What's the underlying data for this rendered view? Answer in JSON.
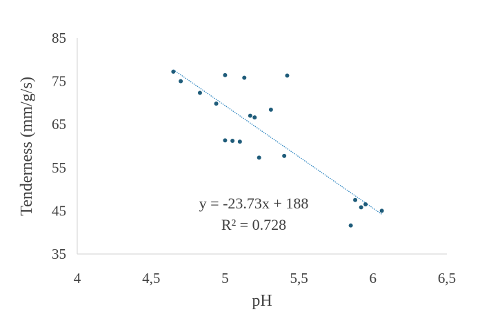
{
  "chart_data": {
    "type": "scatter",
    "title": "",
    "xlabel": "pH",
    "ylabel": "Tenderness (mm/g/s)",
    "xlim": [
      4,
      6.5
    ],
    "ylim": [
      35,
      85
    ],
    "x_ticks": [
      "4",
      "4,5",
      "5",
      "5,5",
      "6",
      "6,5"
    ],
    "y_ticks": [
      "35",
      "45",
      "55",
      "65",
      "75",
      "85"
    ],
    "grid": false,
    "legend": "none",
    "colors": {
      "points": "#1F5C7A",
      "trendline": "#2E86C1",
      "text": "#404040",
      "axis": "#D9D9D9"
    },
    "series": [
      {
        "points": [
          [
            4.65,
            77.2
          ],
          [
            4.7,
            75.0
          ],
          [
            4.83,
            72.3
          ],
          [
            4.94,
            69.8
          ],
          [
            5.0,
            76.4
          ],
          [
            5.13,
            75.8
          ],
          [
            5.42,
            76.3
          ],
          [
            5.17,
            67.0
          ],
          [
            5.2,
            66.6
          ],
          [
            5.31,
            68.4
          ],
          [
            5.0,
            61.3
          ],
          [
            5.05,
            61.2
          ],
          [
            5.1,
            61.0
          ],
          [
            5.23,
            57.3
          ],
          [
            5.4,
            57.7
          ],
          [
            5.88,
            47.5
          ],
          [
            5.92,
            45.8
          ],
          [
            5.95,
            46.5
          ],
          [
            6.06,
            45.0
          ],
          [
            5.85,
            41.6
          ]
        ]
      }
    ],
    "trendline": {
      "type": "linear",
      "slope": -23.73,
      "intercept": 188,
      "x_range": [
        4.65,
        6.06
      ],
      "style": "dotted"
    },
    "annotations": [
      "y = -23.73x + 188",
      "R² = 0.728"
    ]
  }
}
